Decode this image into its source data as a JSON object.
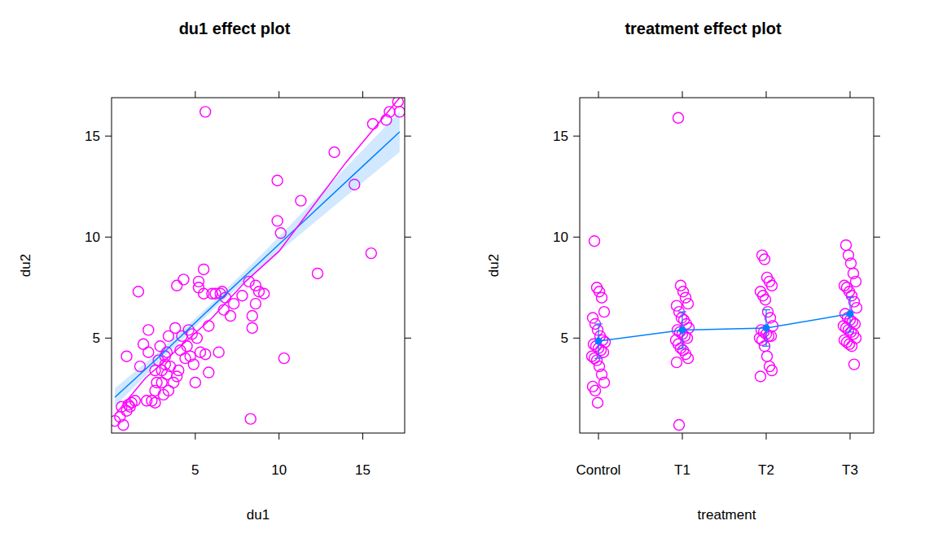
{
  "chart_data": [
    {
      "type": "scatter",
      "title": "du1 effect plot",
      "x_label": "du1",
      "y_label": "du2",
      "xlim": [
        0,
        17.5
      ],
      "ylim": [
        0.3,
        16.9
      ],
      "xticks": [
        5,
        10,
        15
      ],
      "yticks": [
        5,
        10,
        15
      ],
      "series": [
        {
          "type": "scatter",
          "color": "#ff00ff",
          "marker": "circle",
          "x": [
            0.2,
            0.7,
            0.5,
            0.6,
            0.9,
            1.0,
            1.2,
            1.1,
            1.4,
            0.9,
            1.6,
            1.7,
            1.9,
            2.2,
            2.2,
            2.1,
            2.4,
            2.6,
            2.6,
            2.7,
            2.6,
            2.8,
            2.9,
            3.0,
            3.0,
            3.1,
            3.2,
            3.2,
            3.3,
            3.3,
            3.4,
            3.4,
            3.5,
            3.7,
            3.8,
            3.9,
            3.9,
            4.0,
            4.1,
            4.2,
            4.3,
            4.4,
            4.5,
            4.6,
            4.7,
            4.8,
            4.9,
            5.0,
            5.1,
            5.2,
            5.2,
            5.3,
            5.5,
            5.5,
            5.6,
            5.6,
            5.8,
            5.8,
            6.0,
            6.2,
            6.4,
            6.5,
            6.6,
            6.7,
            6.8,
            7.1,
            7.3,
            7.8,
            8.2,
            8.3,
            8.4,
            8.4,
            8.6,
            8.6,
            8.8,
            9.1,
            9.9,
            9.9,
            10.1,
            10.3,
            11.3,
            12.3,
            13.3,
            14.5,
            15.5,
            15.6,
            16.4,
            16.6,
            17.1,
            17.2
          ],
          "values": [
            0.9,
            0.7,
            1.1,
            1.6,
            1.4,
            1.7,
            1.8,
            1.6,
            1.9,
            4.1,
            7.3,
            3.6,
            4.7,
            5.4,
            4.3,
            1.9,
            1.9,
            1.8,
            3.4,
            2.8,
            2.4,
            3.9,
            4.6,
            3.4,
            2.8,
            2.2,
            4.1,
            3.7,
            4.3,
            3.2,
            5.1,
            2.4,
            3.6,
            2.8,
            5.5,
            7.6,
            3.1,
            3.4,
            4.4,
            5.1,
            7.9,
            4.0,
            4.6,
            5.4,
            4.1,
            5.2,
            3.7,
            2.8,
            5.0,
            7.8,
            7.5,
            4.3,
            8.4,
            7.2,
            4.2,
            16.2,
            3.3,
            5.6,
            7.2,
            7.2,
            4.3,
            7.2,
            7.3,
            6.4,
            7.0,
            6.1,
            6.7,
            7.1,
            7.8,
            1.0,
            5.5,
            6.1,
            6.7,
            7.6,
            7.3,
            7.2,
            10.8,
            12.8,
            10.2,
            4.0,
            11.8,
            8.2,
            14.2,
            12.6,
            9.2,
            15.6,
            15.8,
            16.2,
            16.7,
            16.2
          ]
        },
        {
          "type": "line",
          "color": "#0080ff",
          "x": [
            0.2,
            3,
            6,
            9,
            12,
            15,
            17.2
          ],
          "values": [
            2.07,
            4.2,
            6.55,
            8.87,
            11.19,
            13.51,
            15.21
          ],
          "lower": [
            1.62,
            3.95,
            6.35,
            8.57,
            10.64,
            12.71,
            14.21
          ],
          "upper": [
            2.52,
            4.45,
            6.75,
            9.17,
            11.74,
            14.31,
            16.21
          ]
        },
        {
          "type": "line",
          "color": "#ff00ff",
          "x": [
            0.2,
            2,
            4,
            6,
            8,
            10,
            12,
            14,
            16,
            17.2
          ],
          "values": [
            1.2,
            3.0,
            4.5,
            6.0,
            7.8,
            9.3,
            11.5,
            13.7,
            15.7,
            16.9
          ]
        }
      ]
    },
    {
      "type": "scatter",
      "title": "treatment effect plot",
      "x_label": "treatment",
      "y_label": "du2",
      "categories": [
        "Control",
        "T1",
        "T2",
        "T3"
      ],
      "ylim": [
        0.3,
        16.9
      ],
      "yticks": [
        5,
        10,
        15
      ],
      "series": [
        {
          "type": "scatter",
          "color": "#ff00ff",
          "marker": "circle",
          "x": [
            "Control",
            "Control",
            "Control",
            "Control",
            "Control",
            "Control",
            "Control",
            "Control",
            "Control",
            "Control",
            "Control",
            "Control",
            "Control",
            "Control",
            "Control",
            "Control",
            "Control",
            "Control",
            "Control",
            "Control",
            "Control",
            "Control",
            "Control",
            "Control",
            "Control",
            "T1",
            "T1",
            "T1",
            "T1",
            "T1",
            "T1",
            "T1",
            "T1",
            "T1",
            "T1",
            "T1",
            "T1",
            "T1",
            "T1",
            "T1",
            "T1",
            "T1",
            "T1",
            "T1",
            "T1",
            "T1",
            "T1",
            "T1",
            "T1",
            "T2",
            "T2",
            "T2",
            "T2",
            "T2",
            "T2",
            "T2",
            "T2",
            "T2",
            "T2",
            "T2",
            "T2",
            "T2",
            "T2",
            "T2",
            "T2",
            "T2",
            "T2",
            "T2",
            "T2",
            "T2",
            "T2",
            "T2",
            "T3",
            "T3",
            "T3",
            "T3",
            "T3",
            "T3",
            "T3",
            "T3",
            "T3",
            "T3",
            "T3",
            "T3",
            "T3",
            "T3",
            "T3",
            "T3",
            "T3",
            "T3",
            "T3",
            "T3",
            "T3",
            "T3",
            "T3",
            "T3",
            "T3",
            "T3",
            "T3"
          ],
          "values": [
            9.8,
            7.5,
            7.3,
            7.0,
            6.3,
            6.0,
            5.7,
            5.4,
            5.1,
            4.9,
            4.8,
            4.7,
            4.6,
            4.5,
            4.4,
            4.3,
            4.1,
            4.0,
            3.9,
            3.6,
            3.2,
            2.8,
            2.6,
            2.4,
            1.8,
            15.9,
            7.6,
            7.3,
            7.0,
            6.7,
            6.6,
            6.3,
            6.0,
            5.9,
            5.7,
            5.5,
            5.4,
            5.3,
            5.2,
            5.1,
            5.0,
            4.9,
            4.7,
            4.5,
            4.4,
            4.2,
            4.0,
            3.8,
            0.7,
            9.1,
            8.9,
            8.0,
            7.8,
            7.6,
            7.3,
            7.1,
            6.9,
            6.3,
            6.0,
            5.6,
            5.4,
            5.3,
            5.2,
            5.1,
            5.1,
            5.0,
            4.9,
            4.6,
            4.1,
            3.6,
            3.4,
            3.1,
            9.6,
            9.1,
            8.7,
            8.2,
            7.8,
            7.6,
            7.5,
            7.3,
            7.1,
            6.8,
            6.5,
            6.2,
            6.0,
            5.9,
            5.8,
            5.7,
            5.6,
            5.5,
            5.4,
            5.3,
            5.2,
            5.0,
            4.9,
            4.8,
            4.7,
            4.6,
            3.7
          ]
        },
        {
          "type": "line",
          "color": "#0080ff",
          "marker": "circle",
          "values": [
            4.85,
            5.4,
            5.5,
            6.2
          ],
          "lower": [
            4.0,
            4.5,
            4.6,
            5.3
          ],
          "upper": [
            5.7,
            6.3,
            6.4,
            7.0
          ]
        }
      ]
    }
  ]
}
